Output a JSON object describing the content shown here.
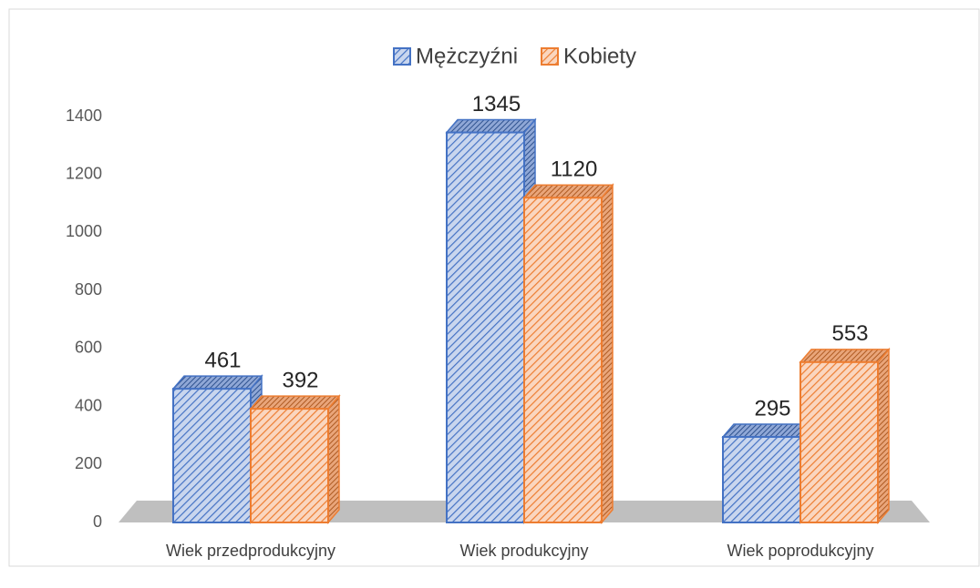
{
  "chart_data": {
    "type": "bar3d",
    "categories": [
      "Wiek przedprodukcyjny",
      "Wiek produkcyjny",
      "Wiek poprodukcyjny"
    ],
    "series": [
      {
        "name": "Mężczyźni",
        "color": "#4472c4",
        "values": [
          461,
          1345,
          295
        ]
      },
      {
        "name": "Kobiety",
        "color": "#ed7d31",
        "values": [
          392,
          1120,
          553
        ]
      }
    ],
    "ylim": [
      0,
      1400
    ],
    "yticks": [
      0,
      200,
      400,
      600,
      800,
      1000,
      1200,
      1400
    ],
    "legend": "top"
  }
}
